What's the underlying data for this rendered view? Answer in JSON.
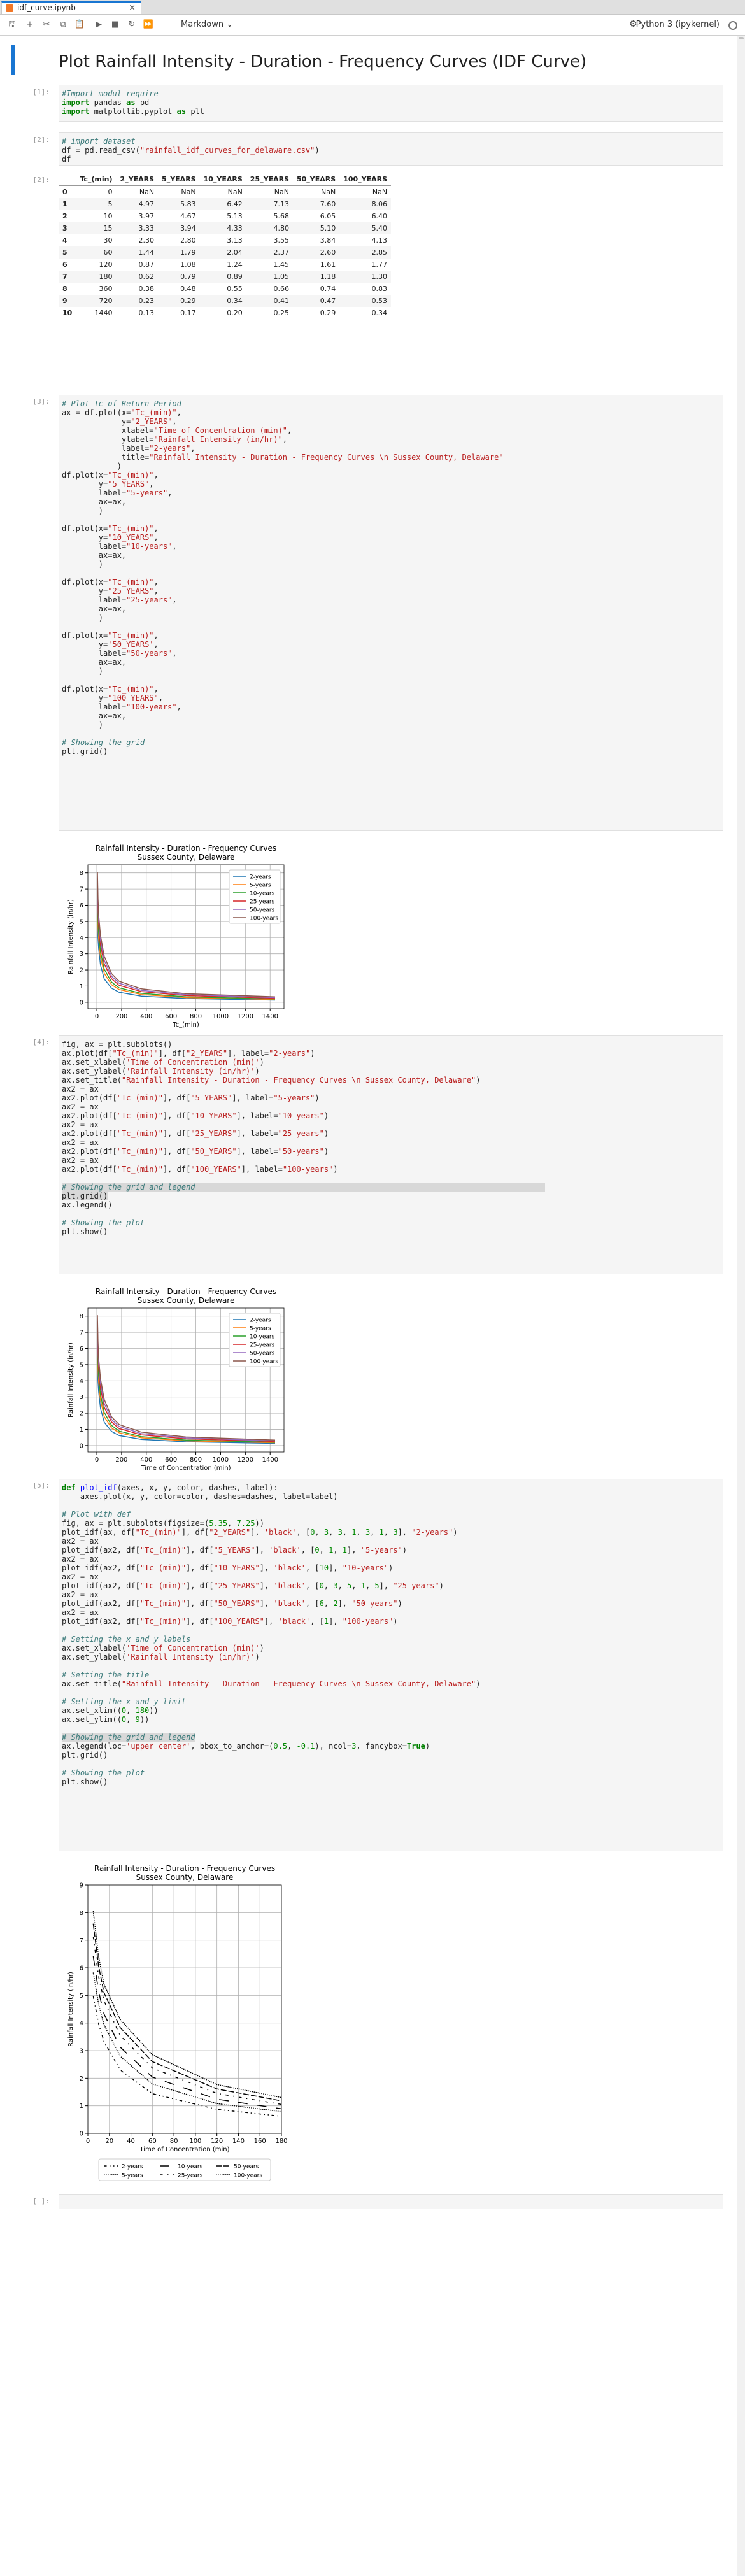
{
  "tab": {
    "title": "idf_curve.ipynb"
  },
  "toolbar": {
    "cell_type": "Markdown",
    "kernel": "Python 3 (ipykernel)"
  },
  "title": "Plot Rainfall Intensity - Duration - Frequency Curves (IDF Curve)",
  "prompts": {
    "p1": "[1]:",
    "p2": "[2]:",
    "p3": "[3]:",
    "p4": "[4]:",
    "p5": "[5]:",
    "p2out": "[2]:",
    "empty": "[ ]:"
  },
  "dataframe": {
    "columns": [
      "Tc_(min)",
      "2_YEARS",
      "5_YEARS",
      "10_YEARS",
      "25_YEARS",
      "50_YEARS",
      "100_YEARS"
    ],
    "rows": [
      [
        "0",
        "0",
        "NaN",
        "NaN",
        "NaN",
        "NaN",
        "NaN",
        "NaN"
      ],
      [
        "1",
        "5",
        "4.97",
        "5.83",
        "6.42",
        "7.13",
        "7.60",
        "8.06"
      ],
      [
        "2",
        "10",
        "3.97",
        "4.67",
        "5.13",
        "5.68",
        "6.05",
        "6.40"
      ],
      [
        "3",
        "15",
        "3.33",
        "3.94",
        "4.33",
        "4.80",
        "5.10",
        "5.40"
      ],
      [
        "4",
        "30",
        "2.30",
        "2.80",
        "3.13",
        "3.55",
        "3.84",
        "4.13"
      ],
      [
        "5",
        "60",
        "1.44",
        "1.79",
        "2.04",
        "2.37",
        "2.60",
        "2.85"
      ],
      [
        "6",
        "120",
        "0.87",
        "1.08",
        "1.24",
        "1.45",
        "1.61",
        "1.77"
      ],
      [
        "7",
        "180",
        "0.62",
        "0.79",
        "0.89",
        "1.05",
        "1.18",
        "1.30"
      ],
      [
        "8",
        "360",
        "0.38",
        "0.48",
        "0.55",
        "0.66",
        "0.74",
        "0.83"
      ],
      [
        "9",
        "720",
        "0.23",
        "0.29",
        "0.34",
        "0.41",
        "0.47",
        "0.53"
      ],
      [
        "10",
        "1440",
        "0.13",
        "0.17",
        "0.20",
        "0.25",
        "0.29",
        "0.34"
      ]
    ]
  },
  "chart_data": [
    {
      "type": "line",
      "title": "Rainfall Intensity - Duration - Frequency Curves\nSussex County, Delaware",
      "xlabel": "Tc_(min)",
      "ylabel": "Rainfall Intensity (in/hr)",
      "xlim": [
        -72,
        1512
      ],
      "ylim": [
        -0.4,
        8.5
      ],
      "xticks": [
        0,
        200,
        400,
        600,
        800,
        1000,
        1200,
        1400
      ],
      "yticks": [
        0,
        1,
        2,
        3,
        4,
        5,
        6,
        7,
        8
      ],
      "grid": true,
      "legend": "top-right",
      "x": [
        0,
        5,
        10,
        15,
        30,
        60,
        120,
        180,
        360,
        720,
        1440
      ],
      "series": [
        {
          "name": "2-years",
          "color": "#1f77b4",
          "values": [
            null,
            4.97,
            3.97,
            3.33,
            2.3,
            1.44,
            0.87,
            0.62,
            0.38,
            0.23,
            0.13
          ]
        },
        {
          "name": "5-years",
          "color": "#ff7f0e",
          "values": [
            null,
            5.83,
            4.67,
            3.94,
            2.8,
            1.79,
            1.08,
            0.79,
            0.48,
            0.29,
            0.17
          ]
        },
        {
          "name": "10-years",
          "color": "#2ca02c",
          "values": [
            null,
            6.42,
            5.13,
            4.33,
            3.13,
            2.04,
            1.24,
            0.89,
            0.55,
            0.34,
            0.2
          ]
        },
        {
          "name": "25-years",
          "color": "#d62728",
          "values": [
            null,
            7.13,
            5.68,
            4.8,
            3.55,
            2.37,
            1.45,
            1.05,
            0.66,
            0.41,
            0.25
          ]
        },
        {
          "name": "50-years",
          "color": "#9467bd",
          "values": [
            null,
            7.6,
            6.05,
            5.1,
            3.84,
            2.6,
            1.61,
            1.18,
            0.74,
            0.47,
            0.29
          ]
        },
        {
          "name": "100-years",
          "color": "#8c564b",
          "values": [
            null,
            8.06,
            6.4,
            5.4,
            4.13,
            2.85,
            1.77,
            1.3,
            0.83,
            0.53,
            0.34
          ]
        }
      ]
    },
    {
      "type": "line",
      "title": "Rainfall Intensity - Duration - Frequency Curves\nSussex County, Delaware",
      "xlabel": "Time of Concentration (min)",
      "ylabel": "Rainfall Intensity (in/hr)",
      "xlim": [
        -72,
        1512
      ],
      "ylim": [
        -0.4,
        8.5
      ],
      "xticks": [
        0,
        200,
        400,
        600,
        800,
        1000,
        1200,
        1400
      ],
      "yticks": [
        0,
        1,
        2,
        3,
        4,
        5,
        6,
        7,
        8
      ],
      "grid": true,
      "legend": "top-right"
    },
    {
      "type": "line",
      "title": "Rainfall Intensity - Duration - Frequency Curves\nSussex County, Delaware",
      "xlabel": "Time of Concentration (min)",
      "ylabel": "Rainfall Intensity (in/hr)",
      "xlim": [
        0,
        180
      ],
      "ylim": [
        0,
        9
      ],
      "xticks": [
        0,
        20,
        40,
        60,
        80,
        100,
        120,
        140,
        160,
        180
      ],
      "yticks": [
        0,
        1,
        2,
        3,
        4,
        5,
        6,
        7,
        8,
        9
      ],
      "grid": true,
      "legend": "lower-center",
      "dashes": [
        [
          0,
          3,
          3,
          1,
          3,
          1,
          3
        ],
        [
          0,
          1,
          1
        ],
        [
          10
        ],
        [
          0,
          3,
          5,
          1,
          5
        ],
        [
          6,
          2
        ],
        [
          1
        ]
      ]
    }
  ]
}
